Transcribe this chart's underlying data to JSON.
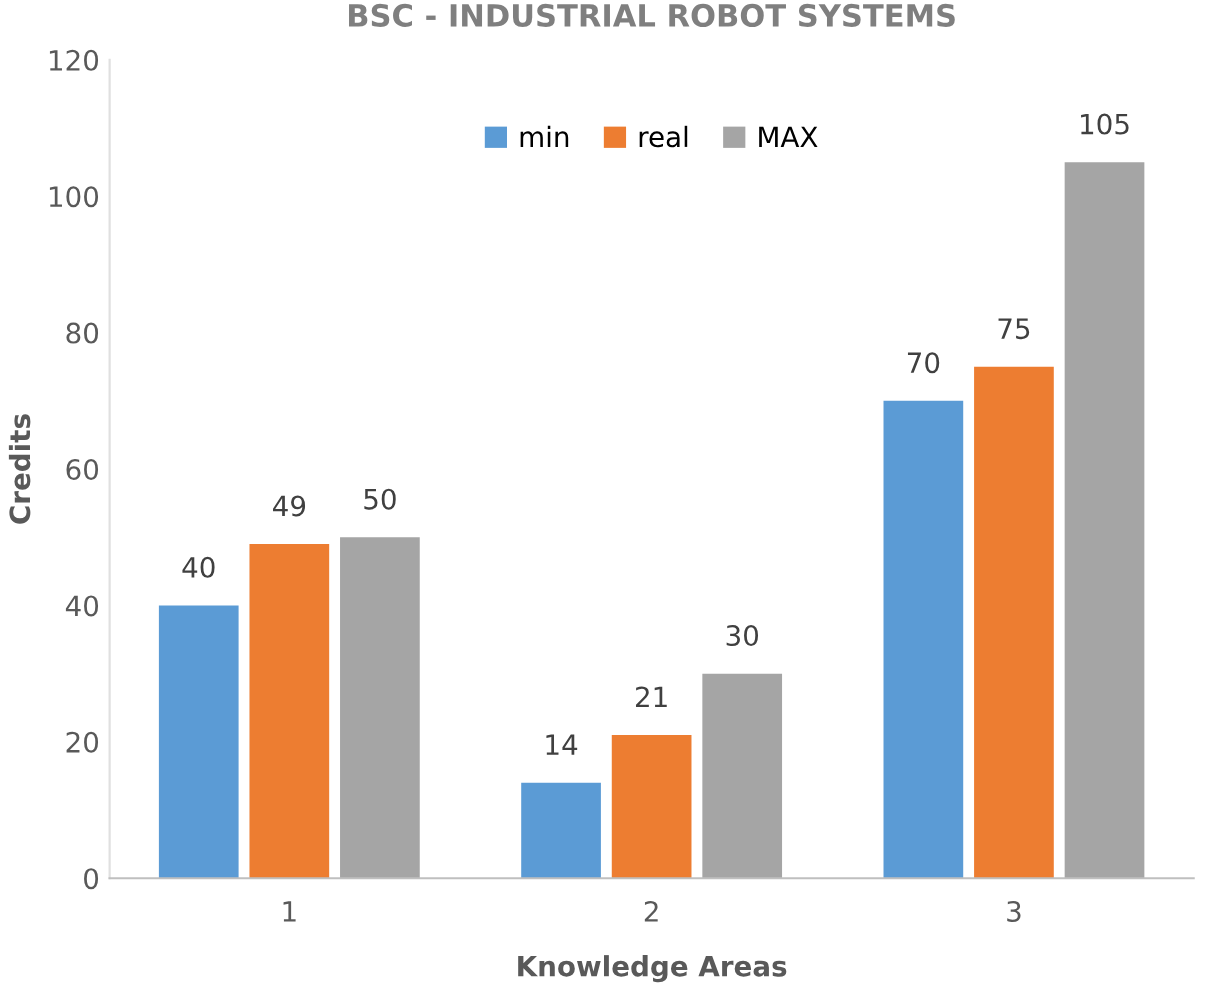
{
  "chart_data": {
    "type": "bar",
    "title": "BSC - INDUSTRIAL ROBOT SYSTEMS",
    "xlabel": "Knowledge Areas",
    "ylabel": "Credits",
    "categories": [
      "1",
      "2",
      "3"
    ],
    "series": [
      {
        "name": "min",
        "color": "#5b9bd5",
        "values": [
          40,
          14,
          70
        ]
      },
      {
        "name": "real",
        "color": "#ed7d31",
        "values": [
          49,
          21,
          75
        ]
      },
      {
        "name": "MAX",
        "color": "#a5a5a5",
        "values": [
          50,
          30,
          105
        ]
      }
    ],
    "ylim": [
      0,
      120
    ],
    "yticks": [
      0,
      20,
      40,
      60,
      80,
      100,
      120
    ],
    "grid": false,
    "legend": "top",
    "data_labels": true
  }
}
